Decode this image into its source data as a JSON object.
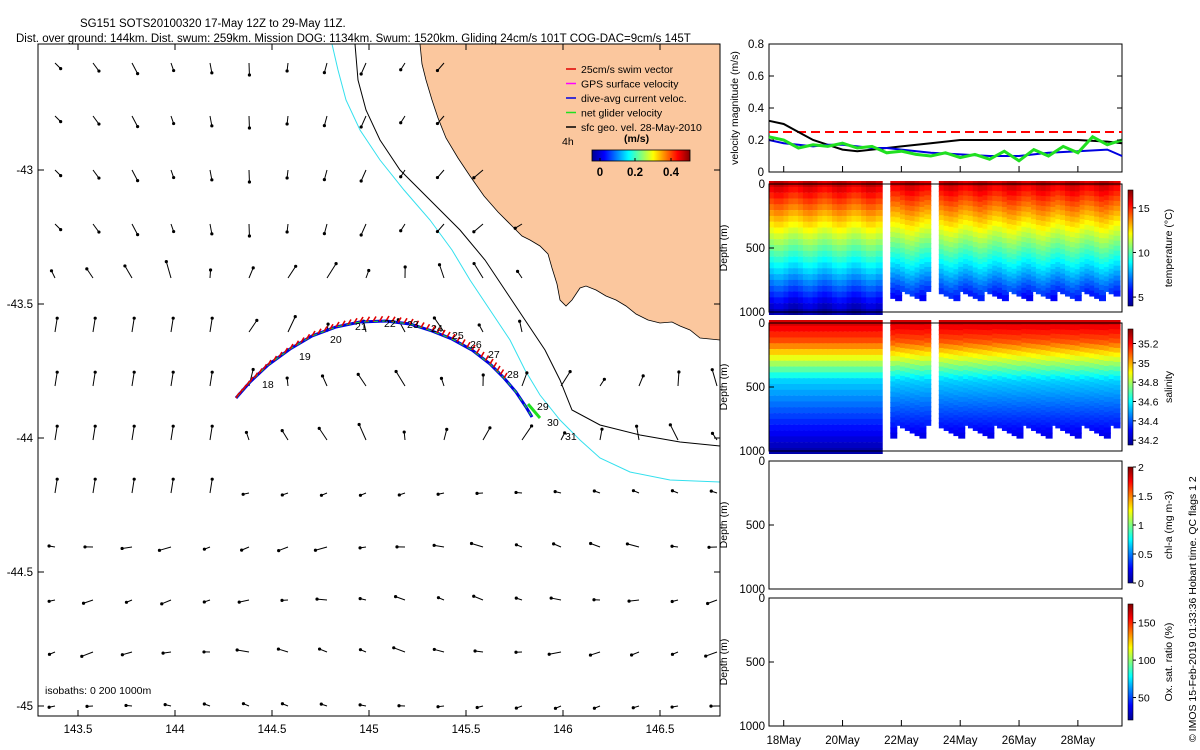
{
  "header": {
    "line1": "SG151 SOTS20100320 17-May 12Z to 29-May 11Z.",
    "line2": "Dist. over ground: 144km. Dist. swum: 259km. Mission DOG: 1134km. Swum: 1520km. Gliding 24cm/s 101T COG-DAC=9cm/s 145T"
  },
  "map": {
    "xticks": [
      "143.5",
      "144",
      "144.5",
      "145",
      "145.5",
      "146",
      "146.5"
    ],
    "yticks": [
      "-43",
      "-43.5",
      "-44",
      "-44.5",
      "-45"
    ],
    "isobaths_label": "isobaths: 0   200   1000m",
    "legend": [
      {
        "label": "25cm/s swim vector",
        "color": "#e00000"
      },
      {
        "label": "GPS surface velocity",
        "color": "#ff00ff"
      },
      {
        "label": "dive-avg current veloc.",
        "color": "#0000e0"
      },
      {
        "label": "net glider velocity",
        "color": "#20e020"
      },
      {
        "label": "sfc geo. vel. 28-May-2010",
        "color": "#000000"
      }
    ],
    "colorbar": {
      "label": "(m/s)",
      "left_text": "4h",
      "ticks": [
        "0",
        "0.2",
        "0.4"
      ]
    },
    "day_labels": [
      "18",
      "19",
      "20",
      "21",
      "22",
      "23",
      "24",
      "25",
      "26",
      "27",
      "28",
      "29",
      "30",
      "31"
    ],
    "land_color": "#fbc79e",
    "isobath200_color": "#33e0ee"
  },
  "chart_data": [
    {
      "type": "line",
      "title": "",
      "xlabel": "",
      "ylabel": "velocity magnitude (m/s)",
      "ylim": [
        0,
        0.8
      ],
      "yticks": [
        "0",
        "0.2",
        "0.4",
        "0.6",
        "0.8"
      ],
      "xlim_day": [
        17.5,
        29.5
      ],
      "series": [
        {
          "name": "reference (dashed)",
          "color": "#ff0000",
          "x": [
            17.5,
            29.5
          ],
          "values": [
            0.25,
            0.25
          ]
        },
        {
          "name": "sfc geo. vel.",
          "color": "#000000",
          "x": [
            17.5,
            18,
            18.5,
            19,
            19.5,
            20,
            20.5,
            21,
            22,
            23,
            24,
            25,
            26,
            27,
            28,
            29,
            29.5
          ],
          "values": [
            0.32,
            0.3,
            0.25,
            0.2,
            0.17,
            0.14,
            0.13,
            0.14,
            0.16,
            0.18,
            0.2,
            0.2,
            0.2,
            0.2,
            0.2,
            0.19,
            0.18
          ]
        },
        {
          "name": "dive-avg current veloc.",
          "color": "#0000e0",
          "x": [
            17.5,
            18,
            18.5,
            19,
            19.5,
            20,
            20.5,
            21,
            21.5,
            22,
            23,
            24,
            25,
            26,
            27,
            28,
            29,
            29.5
          ],
          "values": [
            0.2,
            0.18,
            0.17,
            0.16,
            0.17,
            0.17,
            0.16,
            0.15,
            0.15,
            0.14,
            0.12,
            0.11,
            0.1,
            0.1,
            0.12,
            0.13,
            0.14,
            0.1
          ]
        },
        {
          "name": "net glider velocity",
          "color": "#20e020",
          "x": [
            17.5,
            18,
            18.5,
            19,
            19.5,
            20,
            20.5,
            21,
            21.5,
            22,
            22.5,
            23,
            23.5,
            24,
            24.5,
            25,
            25.5,
            26,
            26.5,
            27,
            27.5,
            28,
            28.5,
            29,
            29.5
          ],
          "values": [
            0.22,
            0.2,
            0.15,
            0.17,
            0.16,
            0.18,
            0.15,
            0.16,
            0.12,
            0.13,
            0.11,
            0.1,
            0.12,
            0.09,
            0.11,
            0.08,
            0.13,
            0.07,
            0.14,
            0.1,
            0.16,
            0.12,
            0.22,
            0.17,
            0.2
          ]
        }
      ]
    },
    {
      "type": "scatter",
      "ylabel": "Depth (m)",
      "cbar_label": "temperature (°C)",
      "ylim": [
        1000,
        0
      ],
      "yticks": [
        "0",
        "500",
        "1000"
      ],
      "cticks": [
        "5",
        "10",
        "15"
      ],
      "crange": [
        4,
        17
      ]
    },
    {
      "type": "scatter",
      "ylabel": "Depth (m)",
      "cbar_label": "salinity",
      "ylim": [
        1000,
        0
      ],
      "yticks": [
        "0",
        "500",
        "1000"
      ],
      "cticks": [
        "34.2",
        "34.4",
        "34.6",
        "34.8",
        "35",
        "35.2"
      ],
      "crange": [
        34.15,
        35.35
      ]
    },
    {
      "type": "scatter",
      "ylabel": "Depth (m)",
      "cbar_label": "chl-a (mg m-3)",
      "ylim": [
        1000,
        0
      ],
      "yticks": [
        "0",
        "500",
        "1000"
      ],
      "cticks": [
        "0",
        "0.5",
        "1",
        "1.5",
        "2"
      ],
      "crange": [
        0,
        2
      ]
    },
    {
      "type": "scatter",
      "ylabel": "Depth (m)",
      "cbar_label": "Ox. sat. ratio (%)",
      "ylim": [
        1000,
        0
      ],
      "yticks": [
        "0",
        "500",
        "1000"
      ],
      "cticks": [
        "50",
        "100",
        "150"
      ],
      "crange": [
        20,
        175
      ]
    }
  ],
  "time_axis": {
    "ticks": [
      "18May",
      "20May",
      "22May",
      "24May",
      "26May",
      "28May"
    ]
  },
  "footer": {
    "credit": "© IMOS 15-Feb-2019 01:33:36 Hobart time. QC flags 1  2"
  }
}
